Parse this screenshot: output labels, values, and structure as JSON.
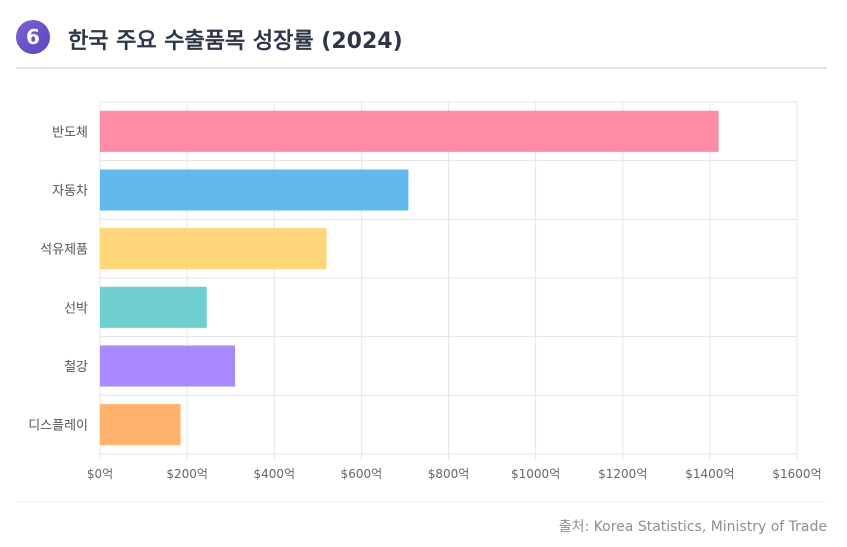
{
  "header": {
    "badge": "6",
    "title": "한국 주요 수출품목 성장률 (2024)"
  },
  "source": "출처: Korea Statistics, Ministry of Trade",
  "chart_data": {
    "type": "bar",
    "orientation": "horizontal",
    "title": "한국 주요 수출품목 성장률 (2024)",
    "categories": [
      "반도체",
      "자동차",
      "석유제품",
      "선박",
      "철강",
      "디스플레이"
    ],
    "values": [
      1420,
      708,
      520,
      245,
      310,
      185
    ],
    "colors": [
      "#ff7f9b",
      "#52b0ec",
      "#ffd36b",
      "#5fcaca",
      "#a07cff",
      "#ffab5c"
    ],
    "xlim": [
      0,
      1600
    ],
    "xticks": [
      0,
      200,
      400,
      600,
      800,
      1000,
      1200,
      1400,
      1600
    ],
    "tick_prefix": "$",
    "tick_suffix": "억",
    "grid": true,
    "legend": "none"
  }
}
